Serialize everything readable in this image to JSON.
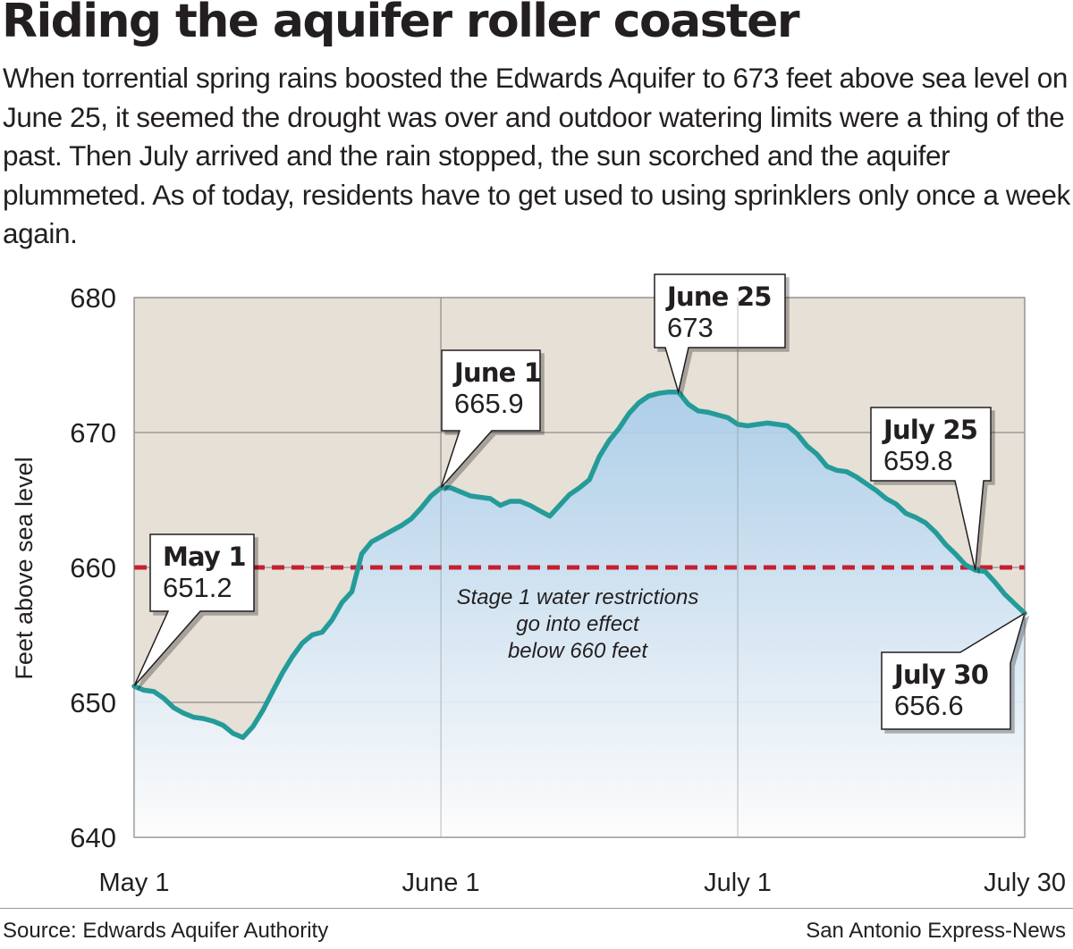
{
  "headline": "Riding the aquifer roller coaster",
  "dek": "When torrential spring rains boosted the Edwards Aquifer to 673 feet above sea level on June 25, it seemed the drought was over and outdoor watering limits were a thing of the past. Then July arrived and the rain stopped, the sun scorched and the aquifer plummeted. As of today, residents have to get used to using sprinklers only once a week again.",
  "source": "Source: Edwards Aquifer Authority",
  "credit": "San Antonio Express-News",
  "colors": {
    "background_above": "#e6e0d6",
    "area_fill_top": "#a9cdea",
    "area_fill_bottom": "#ffffff",
    "line": "#249b99",
    "threshold": "#c52030",
    "grid": "#8c8c8c"
  },
  "chart_data": {
    "type": "area",
    "ylabel": "Feet above sea level",
    "ylim": [
      640,
      680
    ],
    "yticks": [
      "640",
      "650",
      "660",
      "670",
      "680"
    ],
    "xlim": [
      "2014-05-01",
      "2014-07-30"
    ],
    "xticks": [
      {
        "date": "2014-05-01",
        "label": "May 1"
      },
      {
        "date": "2014-06-01",
        "label": "June 1"
      },
      {
        "date": "2014-07-01",
        "label": "July 1"
      },
      {
        "date": "2014-07-30",
        "label": "July 30"
      }
    ],
    "grid": true,
    "series": [
      {
        "points": [
          [
            "2014-05-01",
            651.2
          ],
          [
            "2014-05-02",
            650.9
          ],
          [
            "2014-05-03",
            650.8
          ],
          [
            "2014-05-04",
            650.3
          ],
          [
            "2014-05-05",
            649.6
          ],
          [
            "2014-05-06",
            649.2
          ],
          [
            "2014-05-07",
            648.9
          ],
          [
            "2014-05-08",
            648.8
          ],
          [
            "2014-05-09",
            648.6
          ],
          [
            "2014-05-10",
            648.3
          ],
          [
            "2014-05-11",
            647.7
          ],
          [
            "2014-05-12",
            647.4
          ],
          [
            "2014-05-13",
            648.2
          ],
          [
            "2014-05-14",
            649.4
          ],
          [
            "2014-05-15",
            650.8
          ],
          [
            "2014-05-16",
            652.2
          ],
          [
            "2014-05-17",
            653.4
          ],
          [
            "2014-05-18",
            654.4
          ],
          [
            "2014-05-19",
            655.0
          ],
          [
            "2014-05-20",
            655.2
          ],
          [
            "2014-05-21",
            656.1
          ],
          [
            "2014-05-22",
            657.4
          ],
          [
            "2014-05-23",
            658.2
          ],
          [
            "2014-05-24",
            661.0
          ],
          [
            "2014-05-25",
            661.9
          ],
          [
            "2014-05-26",
            662.3
          ],
          [
            "2014-05-27",
            662.7
          ],
          [
            "2014-05-28",
            663.1
          ],
          [
            "2014-05-29",
            663.6
          ],
          [
            "2014-05-30",
            664.4
          ],
          [
            "2014-05-31",
            665.3
          ],
          [
            "2014-06-01",
            665.9
          ],
          [
            "2014-06-02",
            665.9
          ],
          [
            "2014-06-03",
            665.6
          ],
          [
            "2014-06-04",
            665.3
          ],
          [
            "2014-06-05",
            665.2
          ],
          [
            "2014-06-06",
            665.1
          ],
          [
            "2014-06-07",
            664.6
          ],
          [
            "2014-06-08",
            664.9
          ],
          [
            "2014-06-09",
            664.9
          ],
          [
            "2014-06-10",
            664.6
          ],
          [
            "2014-06-11",
            664.2
          ],
          [
            "2014-06-12",
            663.8
          ],
          [
            "2014-06-13",
            664.6
          ],
          [
            "2014-06-14",
            665.4
          ],
          [
            "2014-06-15",
            665.9
          ],
          [
            "2014-06-16",
            666.5
          ],
          [
            "2014-06-17",
            668.2
          ],
          [
            "2014-06-18",
            669.4
          ],
          [
            "2014-06-19",
            670.3
          ],
          [
            "2014-06-20",
            671.4
          ],
          [
            "2014-06-21",
            672.2
          ],
          [
            "2014-06-22",
            672.7
          ],
          [
            "2014-06-23",
            672.9
          ],
          [
            "2014-06-24",
            673.0
          ],
          [
            "2014-06-25",
            673.0
          ],
          [
            "2014-06-26",
            672.1
          ],
          [
            "2014-06-27",
            671.6
          ],
          [
            "2014-06-28",
            671.5
          ],
          [
            "2014-06-29",
            671.3
          ],
          [
            "2014-06-30",
            671.1
          ],
          [
            "2014-07-01",
            670.6
          ],
          [
            "2014-07-02",
            670.5
          ],
          [
            "2014-07-03",
            670.6
          ],
          [
            "2014-07-04",
            670.7
          ],
          [
            "2014-07-05",
            670.6
          ],
          [
            "2014-07-06",
            670.5
          ],
          [
            "2014-07-07",
            669.9
          ],
          [
            "2014-07-08",
            669.0
          ],
          [
            "2014-07-09",
            668.4
          ],
          [
            "2014-07-10",
            667.5
          ],
          [
            "2014-07-11",
            667.2
          ],
          [
            "2014-07-12",
            667.1
          ],
          [
            "2014-07-13",
            666.7
          ],
          [
            "2014-07-14",
            666.2
          ],
          [
            "2014-07-15",
            665.7
          ],
          [
            "2014-07-16",
            665.1
          ],
          [
            "2014-07-17",
            664.7
          ],
          [
            "2014-07-18",
            664.0
          ],
          [
            "2014-07-19",
            663.7
          ],
          [
            "2014-07-20",
            663.3
          ],
          [
            "2014-07-21",
            662.6
          ],
          [
            "2014-07-22",
            661.7
          ],
          [
            "2014-07-23",
            661.0
          ],
          [
            "2014-07-24",
            660.2
          ],
          [
            "2014-07-25",
            659.8
          ],
          [
            "2014-07-26",
            659.7
          ],
          [
            "2014-07-27",
            658.9
          ],
          [
            "2014-07-28",
            658.0
          ],
          [
            "2014-07-29",
            657.3
          ],
          [
            "2014-07-30",
            656.6
          ]
        ]
      }
    ],
    "threshold": {
      "value": 660,
      "label_lines": [
        "Stage 1 water restrictions",
        "go into effect",
        "below 660 feet"
      ]
    },
    "callouts": [
      {
        "date": "2014-05-01",
        "title": "May 1",
        "value": "651.2"
      },
      {
        "date": "2014-06-01",
        "title": "June 1",
        "value": "665.9"
      },
      {
        "date": "2014-06-25",
        "title": "June 25",
        "value": "673"
      },
      {
        "date": "2014-07-25",
        "title": "July 25",
        "value": "659.8"
      },
      {
        "date": "2014-07-30",
        "title": "July 30",
        "value": "656.6"
      }
    ]
  }
}
